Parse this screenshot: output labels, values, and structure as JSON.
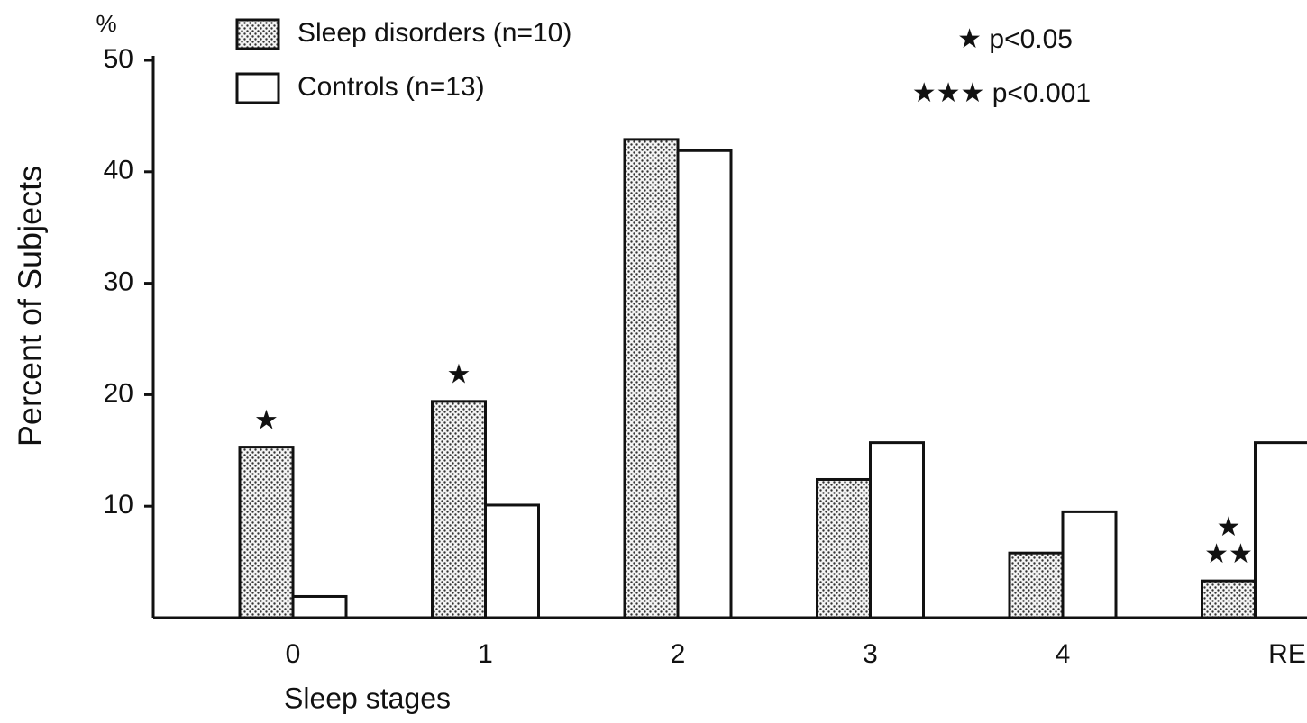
{
  "chart_data": {
    "type": "bar",
    "y_axis_label": "Percent of Subjects",
    "y_unit_label": "%",
    "x_axis_label": "Sleep stages",
    "categories": [
      "0",
      "1",
      "2",
      "3",
      "4",
      "REM"
    ],
    "series": [
      {
        "name": "Sleep disorders (n=10)",
        "color": "dotted",
        "values": [
          15.3,
          19.4,
          42.9,
          12.4,
          5.8,
          3.3
        ]
      },
      {
        "name": "Controls (n=13)",
        "color": "#ffffff",
        "values": [
          1.9,
          10.1,
          41.9,
          15.7,
          9.5,
          15.7
        ]
      }
    ],
    "ylim": [
      0,
      50
    ],
    "yticks": [
      10,
      20,
      30,
      40,
      50
    ],
    "significance_legend": [
      "★ p<0.05",
      "★★★ p<0.001"
    ],
    "annotations": [
      {
        "text": "★",
        "category": "0"
      },
      {
        "text": "★",
        "category": "1"
      },
      {
        "text": "★",
        "category": "REM"
      },
      {
        "text": "★★",
        "category": "REM"
      }
    ]
  }
}
